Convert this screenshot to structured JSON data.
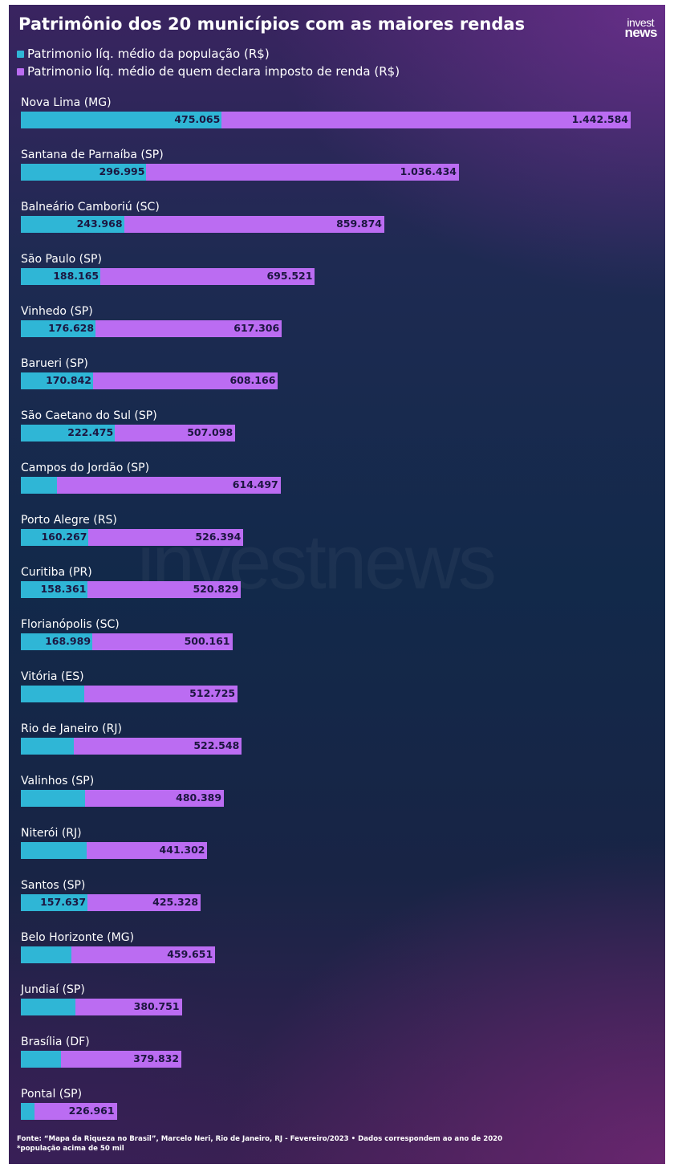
{
  "colors": {
    "population": "#2fb6d6",
    "taxpayers": "#bb6cf2"
  },
  "header": {
    "title": "Patrimônio dos 20 municípios com as maiores rendas",
    "logo_top": "invest",
    "logo_bottom": "news"
  },
  "watermark": "investnews",
  "legend": [
    {
      "label": "Patrimonio líq. médio da população (R$)",
      "color": "#2fb6d6"
    },
    {
      "label": "Patrimonio líq. médio de quem declara imposto de renda (R$)",
      "color": "#bb6cf2"
    }
  ],
  "chart_data": {
    "type": "bar",
    "orientation": "horizontal",
    "title": "Patrimônio dos 20 municípios com as maiores rendas",
    "xlim": [
      0,
      1442584
    ],
    "categories": [
      "Nova Lima (MG)",
      "Santana de Parnaíba (SP)",
      "Balneário Camboriú (SC)",
      "São Paulo (SP)",
      "Vinhedo (SP)",
      "Barueri (SP)",
      "São Caetano do Sul (SP)",
      "Campos do Jordão (SP)",
      "Porto Alegre (RS)",
      "Curitiba (PR)",
      "Florianópolis (SC)",
      "Vitória (ES)",
      "Rio de Janeiro (RJ)",
      "Valinhos (SP)",
      "Niterói (RJ)",
      "Santos (SP)",
      "Belo Horizonte (MG)",
      "Jundiaí (SP)",
      "Brasília (DF)",
      "Pontal (SP)"
    ],
    "series": [
      {
        "name": "Patrimonio líq. médio da população (R$)",
        "values": [
          475065,
          296995,
          243968,
          188165,
          176628,
          170842,
          222475,
          86000,
          160267,
          158361,
          168989,
          150000,
          126000,
          151000,
          156000,
          157637,
          120000,
          130000,
          95000,
          32000
        ],
        "labels": [
          "475.065",
          "296.995",
          "243.968",
          "188.165",
          "176.628",
          "170.842",
          "222.475",
          "",
          "160.267",
          "158.361",
          "168.989",
          "",
          "",
          "",
          "",
          "157.637",
          "",
          "",
          "",
          ""
        ]
      },
      {
        "name": "Patrimonio líq. médio de quem declara imposto de renda (R$)",
        "values": [
          1442584,
          1036434,
          859874,
          695521,
          617306,
          608166,
          507098,
          614497,
          526394,
          520829,
          500161,
          512725,
          522548,
          480389,
          441302,
          425328,
          459651,
          380751,
          379832,
          226961
        ],
        "labels": [
          "1.442.584",
          "1.036.434",
          "859.874",
          "695.521",
          "617.306",
          "608.166",
          "507.098",
          "614.497",
          "526.394",
          "520.829",
          "500.161",
          "512.725",
          "522.548",
          "480.389",
          "441.302",
          "425.328",
          "459.651",
          "380.751",
          "379.832",
          "226.961"
        ]
      }
    ]
  },
  "footer": {
    "source": "Fonte: “Mapa da Riqueza no Brasil”, Marcelo Neri, Rio de Janeiro, RJ - Fevereiro/2023 • Dados correspondem ao ano de 2020",
    "note": "*população acima de 50 mil"
  }
}
